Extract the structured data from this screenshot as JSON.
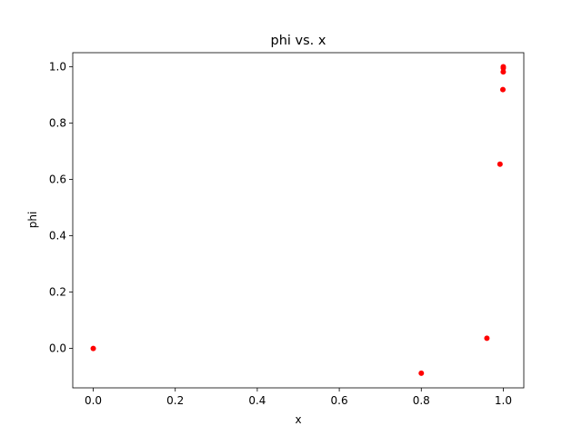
{
  "chart_data": {
    "type": "scatter",
    "title": "phi vs. x",
    "xlabel": "x",
    "ylabel": "phi",
    "xlim": [
      -0.05,
      1.05
    ],
    "ylim": [
      -0.14,
      1.05
    ],
    "xticks": [
      0.0,
      0.2,
      0.4,
      0.6,
      0.8,
      1.0
    ],
    "yticks": [
      0.0,
      0.2,
      0.4,
      0.6,
      0.8,
      1.0
    ],
    "xtick_labels": [
      "0.0",
      "0.2",
      "0.4",
      "0.6",
      "0.8",
      "1.0"
    ],
    "ytick_labels": [
      "0.0",
      "0.2",
      "0.4",
      "0.6",
      "0.8",
      "1.0"
    ],
    "grid": false,
    "marker_color": "#ff0000",
    "series": [
      {
        "x": [
          0.0,
          0.8,
          0.96,
          0.992,
          0.999,
          0.9999,
          1.0,
          1.0
        ],
        "y": [
          0.0,
          -0.088,
          0.036,
          0.654,
          0.919,
          0.982,
          0.995,
          1.0
        ]
      }
    ]
  }
}
